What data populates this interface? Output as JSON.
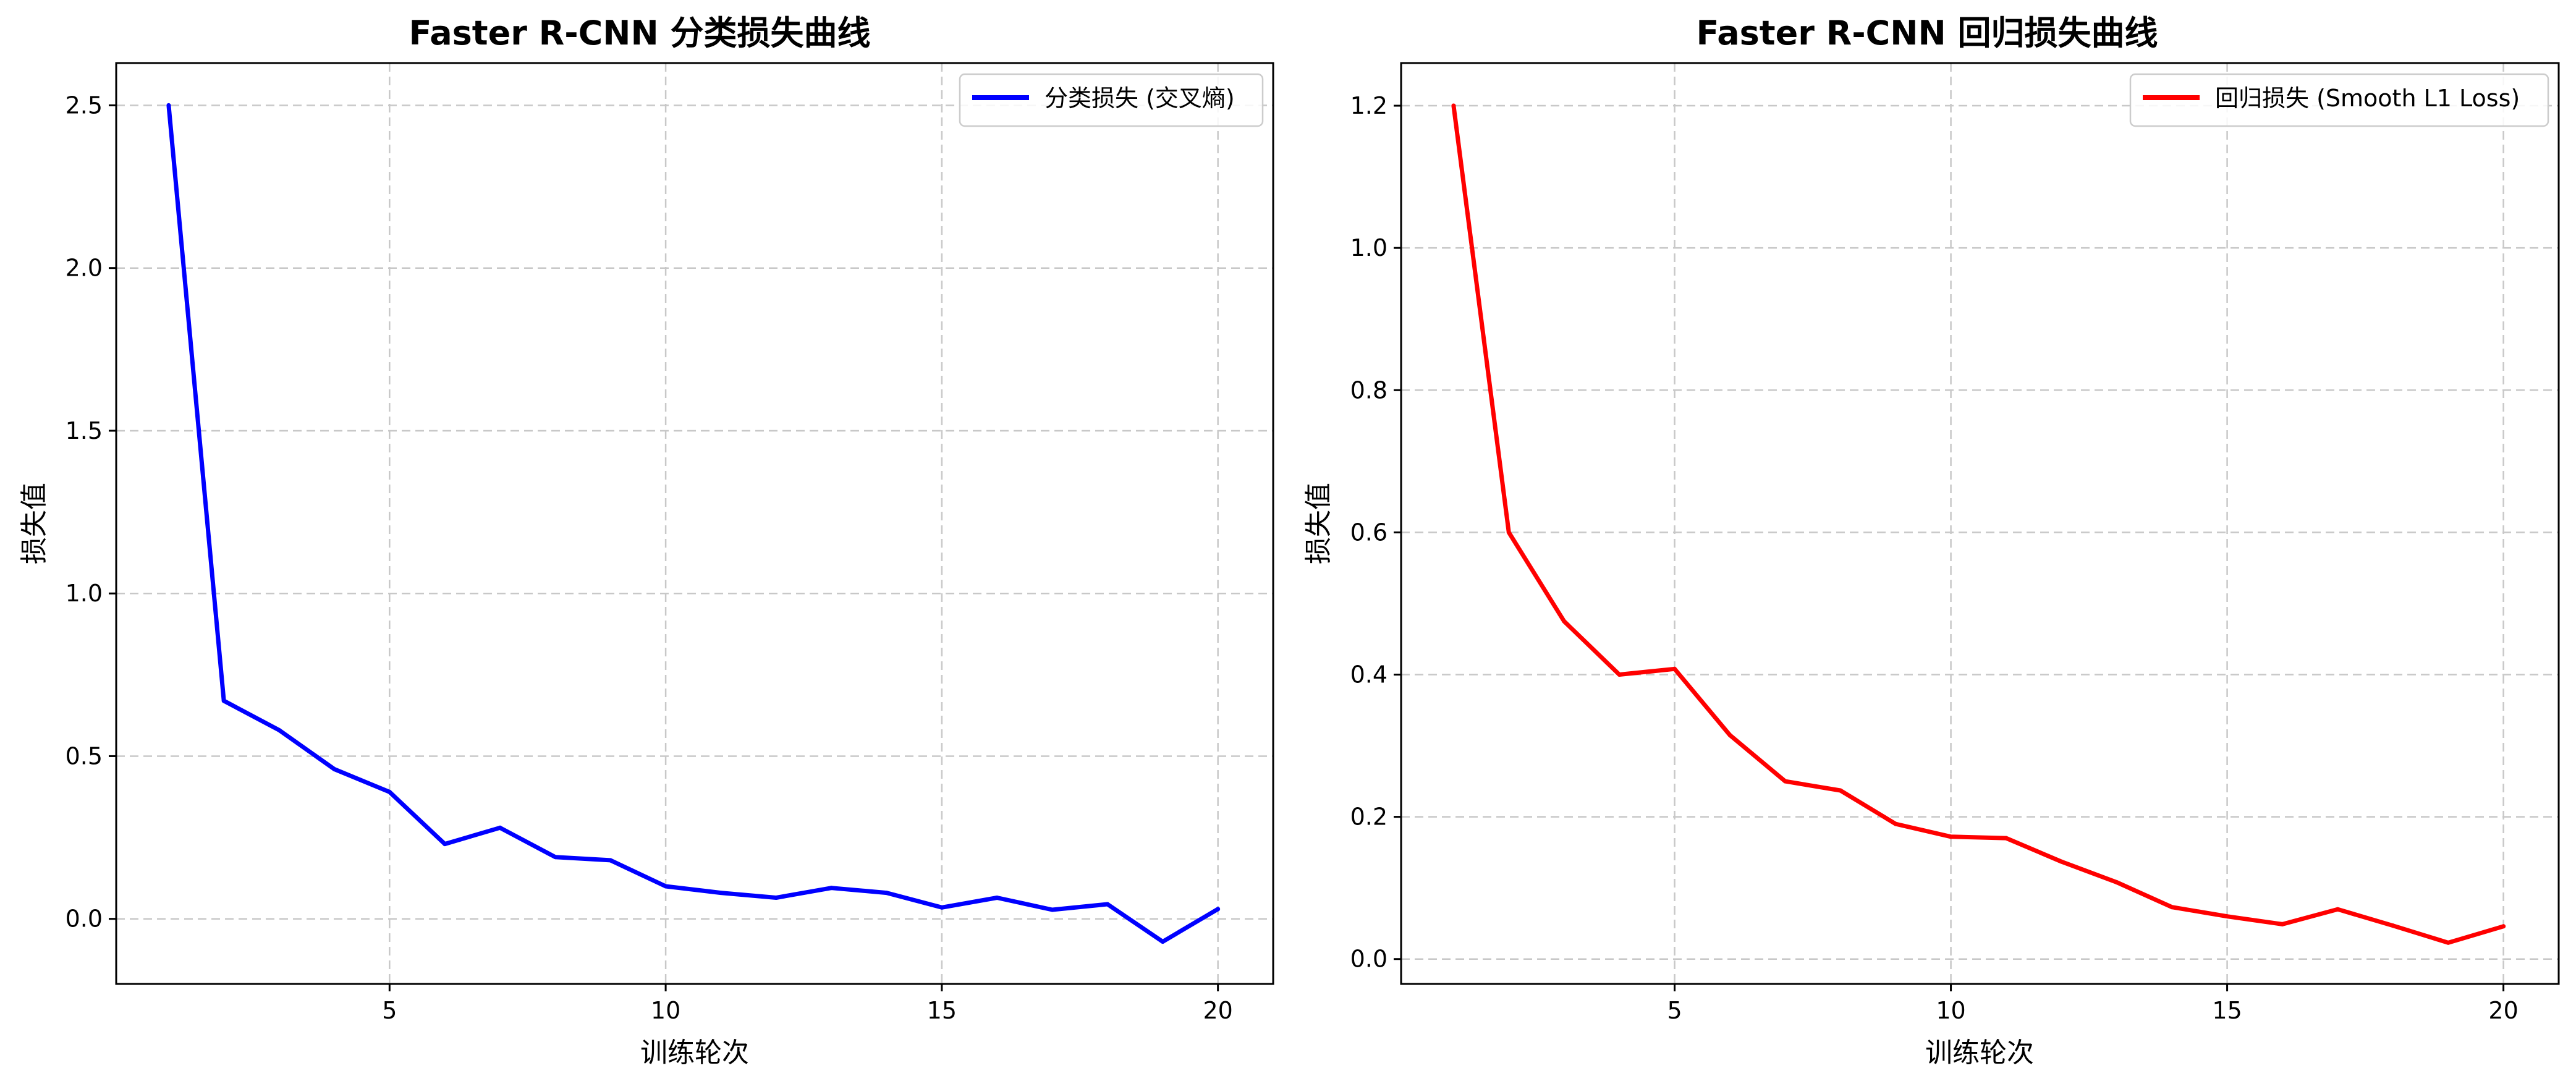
{
  "chart_data": [
    {
      "type": "line",
      "title": "Faster R-CNN 分类损失曲线",
      "xlabel": "训练轮次",
      "ylabel": "损失值",
      "x": [
        1,
        2,
        3,
        4,
        5,
        6,
        7,
        8,
        9,
        10,
        11,
        12,
        13,
        14,
        15,
        16,
        17,
        18,
        19,
        20
      ],
      "xlim": [
        0.05,
        21.0
      ],
      "ylim": [
        -0.2,
        2.63
      ],
      "xticks": [
        5,
        10,
        15,
        20
      ],
      "xtick_labels": [
        "5",
        "10",
        "15",
        "20"
      ],
      "yticks": [
        0.0,
        0.5,
        1.0,
        1.5,
        2.0,
        2.5
      ],
      "ytick_labels": [
        "0.0",
        "0.5",
        "1.0",
        "1.5",
        "2.0",
        "2.5"
      ],
      "grid": true,
      "legend_position": "top-right",
      "series": [
        {
          "name": "分类损失 (交叉熵)",
          "color": "#0000ff",
          "values": [
            2.5,
            0.67,
            0.58,
            0.46,
            0.39,
            0.23,
            0.28,
            0.19,
            0.18,
            0.1,
            0.08,
            0.065,
            0.095,
            0.08,
            0.035,
            0.065,
            0.028,
            0.045,
            -0.07,
            0.03
          ]
        }
      ]
    },
    {
      "type": "line",
      "title": "Faster R-CNN 回归损失曲线",
      "xlabel": "训练轮次",
      "ylabel": "损失值",
      "x": [
        1,
        2,
        3,
        4,
        5,
        6,
        7,
        8,
        9,
        10,
        11,
        12,
        13,
        14,
        15,
        16,
        17,
        18,
        19,
        20
      ],
      "xlim": [
        0.05,
        21.0
      ],
      "ylim": [
        -0.035,
        1.26
      ],
      "xticks": [
        5,
        10,
        15,
        20
      ],
      "xtick_labels": [
        "5",
        "10",
        "15",
        "20"
      ],
      "yticks": [
        0.0,
        0.2,
        0.4,
        0.6,
        0.8,
        1.0,
        1.2
      ],
      "ytick_labels": [
        "0.0",
        "0.2",
        "0.4",
        "0.6",
        "0.8",
        "1.0",
        "1.2"
      ],
      "grid": true,
      "legend_position": "top-right",
      "series": [
        {
          "name": "回归损失 (Smooth L1 Loss)",
          "color": "#ff0000",
          "values": [
            1.2,
            0.6,
            0.475,
            0.4,
            0.408,
            0.315,
            0.25,
            0.237,
            0.19,
            0.172,
            0.17,
            0.137,
            0.108,
            0.073,
            0.06,
            0.049,
            0.07,
            0.047,
            0.023,
            0.046
          ]
        }
      ]
    }
  ]
}
